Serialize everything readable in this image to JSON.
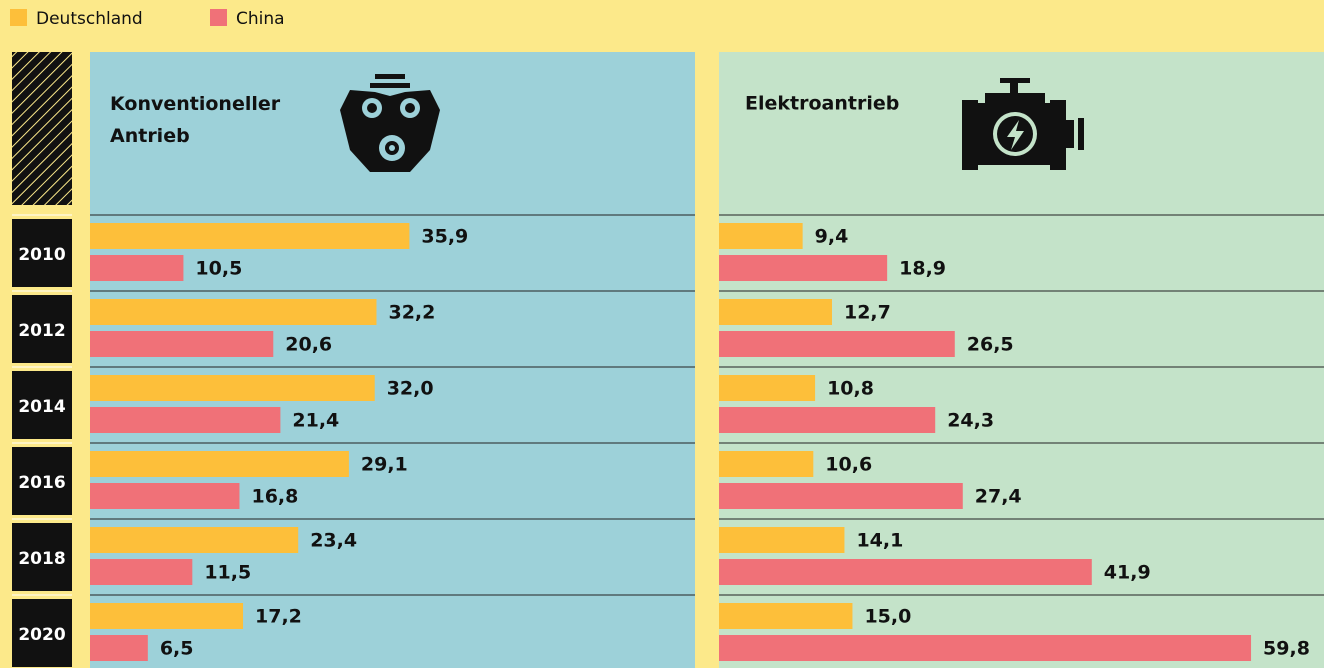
{
  "chart_data": [
    {
      "type": "bar",
      "title": "Konventioneller Antrieb",
      "categories": [
        "2010",
        "2012",
        "2014",
        "2016",
        "2018",
        "2020"
      ],
      "xlim": [
        0,
        68
      ],
      "series": [
        {
          "name": "Deutschland",
          "color": "#fdbf3a",
          "values": [
            35.9,
            32.2,
            32.0,
            29.1,
            23.4,
            17.2
          ],
          "value_labels": [
            "35,9",
            "32,2",
            "32,0",
            "29,1",
            "23,4",
            "17,2"
          ]
        },
        {
          "name": "China",
          "color": "#f07178",
          "values": [
            10.5,
            20.6,
            21.4,
            16.8,
            11.5,
            6.5
          ],
          "value_labels": [
            "10,5",
            "20,6",
            "21,4",
            "16,8",
            "11,5",
            "6,5"
          ]
        }
      ]
    },
    {
      "type": "bar",
      "title": "Elektroantrieb",
      "xlim": [
        0,
        68
      ],
      "series": [
        {
          "color": "#fdbf3a",
          "values": [
            9.4,
            12.7,
            10.8,
            10.6,
            14.1,
            15.0
          ],
          "value_labels": [
            "9,4",
            "12,7",
            "10,8",
            "10,6",
            "14,1",
            "15,0"
          ]
        },
        {
          "color": "#f07178",
          "values": [
            18.9,
            26.5,
            24.3,
            27.4,
            41.9,
            59.8
          ],
          "value_labels": [
            "18,9",
            "26,5",
            "24,3",
            "27,4",
            "41,9",
            "59,8"
          ]
        }
      ]
    }
  ]
}
